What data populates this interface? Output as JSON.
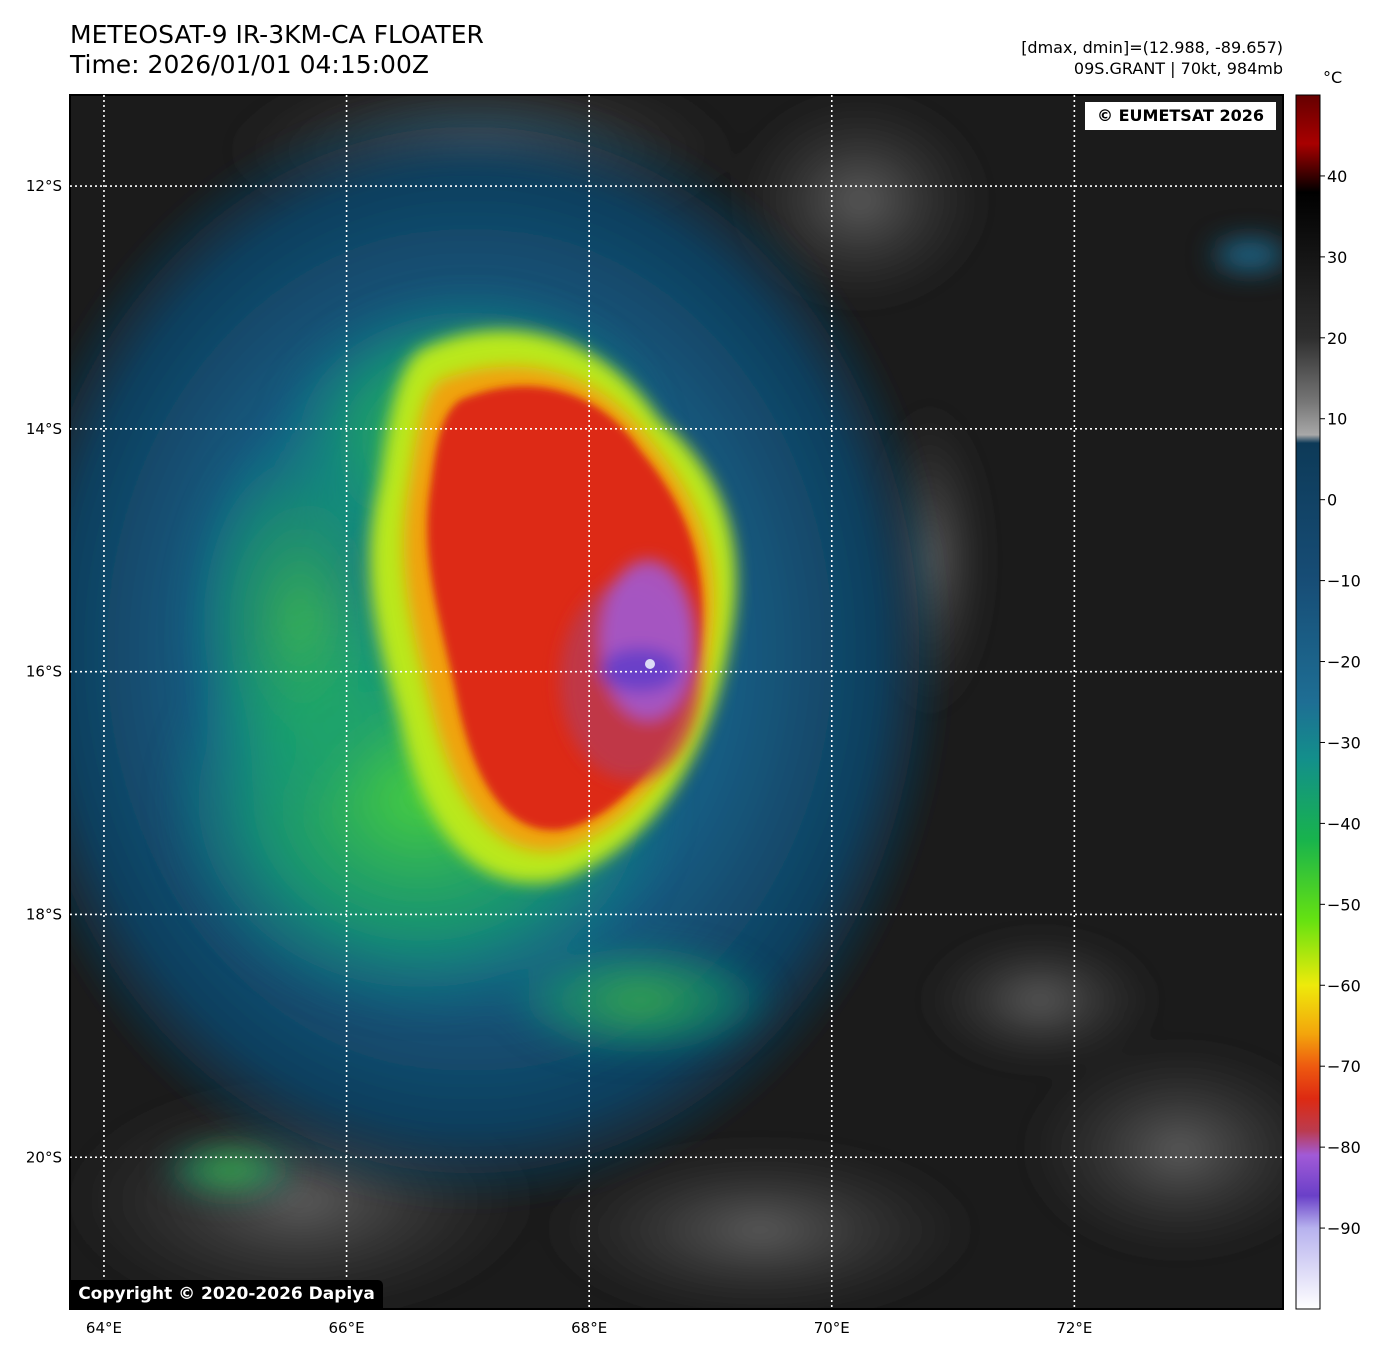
{
  "header": {
    "title_line1": "METEOSAT-9 IR-3KM-CA FLOATER",
    "title_line2": "Time: 2026/01/01 04:15:00Z",
    "dminmax": "[dmax, dmin]=(12.988, -89.657)",
    "storm": "09S.GRANT | 70kt, 984mb"
  },
  "colorbar": {
    "unit": "°C",
    "ticks": [
      40,
      30,
      20,
      10,
      0,
      -10,
      -20,
      -30,
      -40,
      -50,
      -60,
      -70,
      -80,
      -90
    ],
    "tick_labels": [
      "40",
      "30",
      "20",
      "10",
      "0",
      "−10",
      "−20",
      "−30",
      "−40",
      "−50",
      "−60",
      "−70",
      "−80",
      "−90"
    ],
    "range": [
      -100,
      50
    ],
    "stops": [
      {
        "value": 50,
        "color": "#650000"
      },
      {
        "value": 44,
        "color": "#a80000"
      },
      {
        "value": 38,
        "color": "#000000"
      },
      {
        "value": 20,
        "color": "#2e2e2e"
      },
      {
        "value": 12,
        "color": "#777777"
      },
      {
        "value": 8,
        "color": "#a8a8a8"
      },
      {
        "value": 7,
        "color": "#0d3a58"
      },
      {
        "value": -10,
        "color": "#174d76"
      },
      {
        "value": -25,
        "color": "#1e6e94"
      },
      {
        "value": -32,
        "color": "#138f8b"
      },
      {
        "value": -42,
        "color": "#18b34d"
      },
      {
        "value": -52,
        "color": "#66e211"
      },
      {
        "value": -60,
        "color": "#eeea0b"
      },
      {
        "value": -66,
        "color": "#f3a50c"
      },
      {
        "value": -70,
        "color": "#ee5a10"
      },
      {
        "value": -74,
        "color": "#dd2a12"
      },
      {
        "value": -78,
        "color": "#bb3b4f"
      },
      {
        "value": -81,
        "color": "#a15ad7"
      },
      {
        "value": -86,
        "color": "#6a40c8"
      },
      {
        "value": -90,
        "color": "#b7b2ee"
      },
      {
        "value": -100,
        "color": "#ffffff"
      }
    ]
  },
  "map": {
    "lon_ticks": [
      64,
      66,
      68,
      70,
      72
    ],
    "lon_labels": [
      "64°E",
      "66°E",
      "68°E",
      "70°E",
      "72°E"
    ],
    "lat_ticks": [
      -12,
      -14,
      -16,
      -18,
      -20
    ],
    "lat_labels": [
      "12°S",
      "14°S",
      "16°S",
      "18°S",
      "20°S"
    ],
    "lon_range": [
      63.72,
      73.72
    ],
    "lat_range": [
      -21.25,
      -11.25
    ],
    "gridlines": true,
    "storm_center": {
      "lon": 68.5,
      "lat": -15.95
    }
  },
  "credits": {
    "top": "© EUMETSAT 2026",
    "bottom": "Copyright © 2020-2026 Dapiya"
  }
}
